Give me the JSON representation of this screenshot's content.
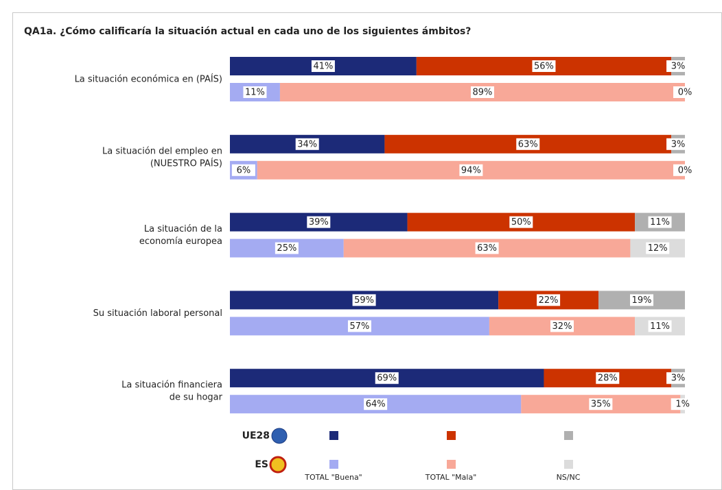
{
  "chart_data": {
    "type": "stacked-bar-horizontal",
    "title": "QA1a. ¿Cómo calificaría la situación actual en cada uno de los siguientes ámbitos?",
    "categories": [
      [
        "La situación económica en (PAÍS)"
      ],
      [
        "La situación del empleo en",
        "(NUESTRO PAÍS)"
      ],
      [
        "La situación de la",
        "economía europea"
      ],
      [
        "Su situación laboral personal"
      ],
      [
        "La situación financiera",
        "de su hogar"
      ]
    ],
    "groups": [
      "UE28",
      "ES"
    ],
    "xlim": [
      0,
      100
    ],
    "series": [
      {
        "name": "TOTAL \"Buena\"",
        "colors": [
          "#1c2a78",
          "#a4abf2"
        ],
        "values": [
          [
            41,
            11
          ],
          [
            34,
            6
          ],
          [
            39,
            25
          ],
          [
            59,
            57
          ],
          [
            69,
            64
          ]
        ],
        "value_labels": [
          [
            "41%",
            "11%"
          ],
          [
            "34%",
            "6%"
          ],
          [
            "39%",
            "25%"
          ],
          [
            "59%",
            "57%"
          ],
          [
            "69%",
            "64%"
          ]
        ]
      },
      {
        "name": "TOTAL \"Mala\"",
        "colors": [
          "#cc3300",
          "#f8a898"
        ],
        "values": [
          [
            56,
            89
          ],
          [
            63,
            94
          ],
          [
            50,
            63
          ],
          [
            22,
            32
          ],
          [
            28,
            35
          ]
        ],
        "value_labels": [
          [
            "56%",
            "89%"
          ],
          [
            "63%",
            "94%"
          ],
          [
            "50%",
            "63%"
          ],
          [
            "22%",
            "32%"
          ],
          [
            "28%",
            "35%"
          ]
        ]
      },
      {
        "name": "NS/NC",
        "colors": [
          "#b0b0b0",
          "#dcdcdc"
        ],
        "values": [
          [
            3,
            0
          ],
          [
            3,
            0
          ],
          [
            11,
            12
          ],
          [
            19,
            11
          ],
          [
            3,
            1
          ]
        ],
        "value_labels": [
          [
            "3%",
            "0%"
          ],
          [
            "3%",
            "0%"
          ],
          [
            "11%",
            "12%"
          ],
          [
            "19%",
            "11%"
          ],
          [
            "3%",
            "1%"
          ]
        ]
      }
    ]
  }
}
